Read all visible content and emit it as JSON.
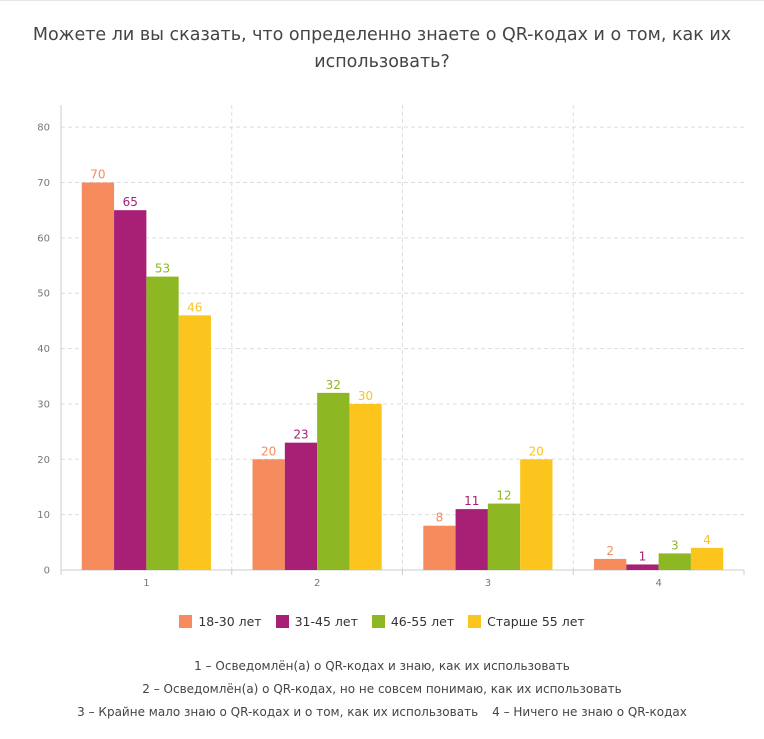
{
  "chart_data": {
    "type": "bar",
    "title": "Можете ли вы сказать, что определенно знаете о QR-кодах и о том, как их использовать?",
    "categories": [
      "1",
      "2",
      "3",
      "4"
    ],
    "series": [
      {
        "name": "18-30 лет",
        "color": "#f68c5e",
        "values": [
          70,
          20,
          8,
          2
        ]
      },
      {
        "name": "31-45 лет",
        "color": "#a82076",
        "values": [
          65,
          23,
          11,
          1
        ]
      },
      {
        "name": "46-55 лет",
        "color": "#8db823",
        "values": [
          53,
          32,
          12,
          3
        ]
      },
      {
        "name": "Старше 55 лет",
        "color": "#fbc51e",
        "values": [
          46,
          30,
          20,
          4
        ]
      }
    ],
    "ylim": [
      0,
      84
    ],
    "yticks": [
      0,
      10,
      20,
      30,
      40,
      50,
      60,
      70,
      80
    ],
    "grid": true,
    "legend": "bottom",
    "xlabel": "",
    "ylabel": ""
  },
  "notes": {
    "line1": "1 – Осведомлён(а) о QR-кодах и знаю, как их использовать",
    "line2": "2 – Осведомлён(а) о QR-кодах, но не совсем понимаю, как их использовать",
    "line3a": "3 – Крайне мало знаю о QR-кодах и о том, как их использовать",
    "line3b": "4 – Ничего не знаю о QR-кодах"
  }
}
